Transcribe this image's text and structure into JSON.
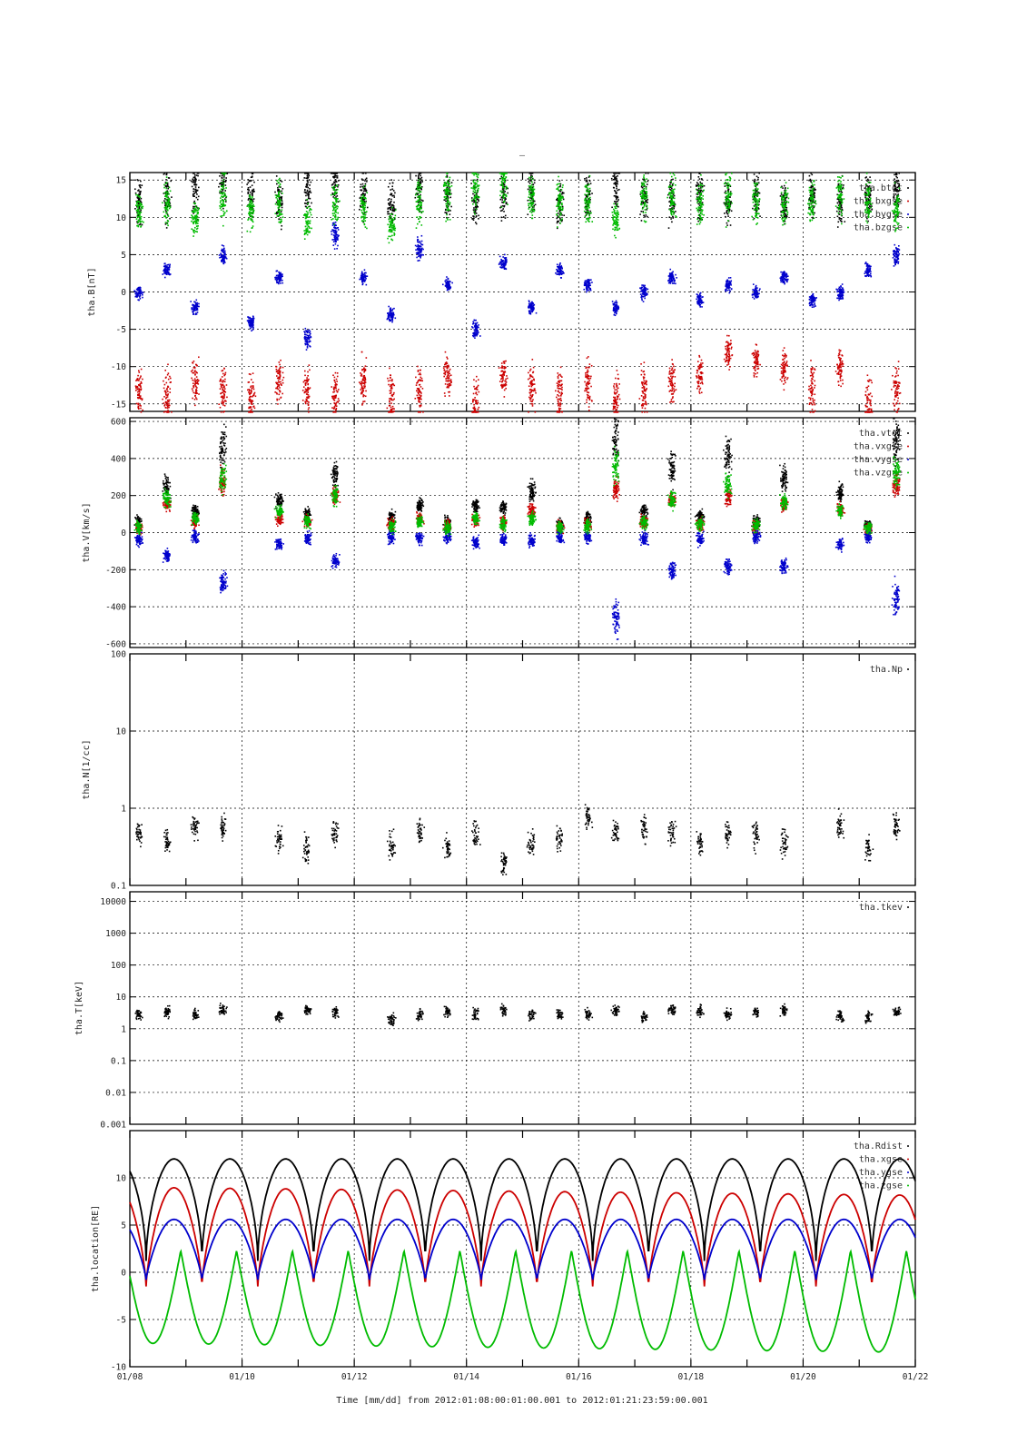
{
  "figure": {
    "title_mark": "–",
    "xaxis_label": "Time [mm/dd]  from 2012:01:08:00:01:00.001  to  2012:01:21:23:59:00.001",
    "xticks": [
      "01/08",
      "01/10",
      "01/12",
      "01/14",
      "01/16",
      "01/18",
      "01/20",
      "01/22"
    ]
  },
  "chart_data": [
    {
      "type": "scatter",
      "ylabel": "tha.B[nT]",
      "scale": "linear",
      "ylim": [
        -16,
        16
      ],
      "yticks": [
        -15,
        -10,
        -5,
        0,
        5,
        10,
        15
      ],
      "grid": true,
      "legend_position": "top-right",
      "series": [
        {
          "name": "tha.btot",
          "color": "#000000"
        },
        {
          "name": "tha.bxgse",
          "color": "#cc0000"
        },
        {
          "name": "tha.bygse",
          "color": "#0000cc"
        },
        {
          "name": "tha.bzgse",
          "color": "#00bb00"
        }
      ],
      "x": [
        "01/08",
        "01/08 12h",
        "01/09",
        "01/09 12h",
        "01/10",
        "01/10 12h",
        "01/11",
        "01/11 12h",
        "01/12",
        "01/12 12h",
        "01/13",
        "01/13 12h",
        "01/14",
        "01/14 12h",
        "01/15",
        "01/15 12h",
        "01/16",
        "01/16 12h",
        "01/17",
        "01/17 12h",
        "01/18",
        "01/18 12h",
        "01/19",
        "01/19 12h",
        "01/20",
        "01/20 12h",
        "01/21",
        "01/21 12h"
      ],
      "values": {
        "tha.bxgse": [
          -13,
          -14,
          -12,
          -13,
          -14,
          -12,
          -13,
          -14,
          -12,
          -14,
          -13,
          -11,
          -15,
          -11,
          -13,
          -14,
          -12,
          -14,
          -13,
          -12,
          -11,
          -8,
          -9,
          -10,
          -13,
          -10,
          -15,
          -13
        ],
        "tha.bzgse": [
          11,
          12,
          10,
          13,
          11,
          12,
          10,
          12,
          11,
          9,
          12,
          13,
          14,
          15,
          13,
          12,
          12,
          10,
          13,
          13,
          12,
          13,
          12,
          12,
          12,
          13,
          12,
          11
        ],
        "tha.bygse": [
          0,
          3,
          -2,
          5,
          -4,
          2,
          -6,
          8,
          2,
          -3,
          6,
          1,
          -5,
          4,
          -2,
          3,
          1,
          -2,
          0,
          2,
          -1,
          1,
          0,
          2,
          -1,
          0,
          3,
          5
        ],
        "tha.btot": [
          12,
          13,
          14,
          15,
          13,
          12,
          14,
          15,
          13,
          12,
          14,
          13,
          12,
          13,
          14,
          12,
          13,
          14,
          13,
          12,
          13,
          12,
          13,
          12,
          13,
          12,
          13,
          14
        ]
      }
    },
    {
      "type": "scatter",
      "ylabel": "tha.V[km/s]",
      "scale": "linear",
      "ylim": [
        -620,
        620
      ],
      "yticks": [
        -600,
        -400,
        -200,
        0,
        200,
        400,
        600
      ],
      "grid": true,
      "legend_position": "top-right",
      "series": [
        {
          "name": "tha.vtot",
          "color": "#000000"
        },
        {
          "name": "tha.vxgse",
          "color": "#cc0000"
        },
        {
          "name": "tha.vygse",
          "color": "#0000cc"
        },
        {
          "name": "tha.vzgse",
          "color": "#00bb00"
        }
      ],
      "x": [
        "01/08",
        "01/08 12h",
        "01/09",
        "01/09 12h",
        "01/10 12h",
        "01/11",
        "01/11 12h",
        "01/12 12h",
        "01/13",
        "01/13 12h",
        "01/14",
        "01/14 12h",
        "01/15",
        "01/15 12h",
        "01/16",
        "01/16 12h",
        "01/17",
        "01/17 12h",
        "01/18",
        "01/18 12h",
        "01/19",
        "01/19 12h",
        "01/20 12h",
        "01/21",
        "01/21 12h"
      ],
      "values": {
        "tha.vtot": [
          60,
          250,
          120,
          470,
          180,
          100,
          300,
          90,
          150,
          60,
          150,
          140,
          230,
          50,
          80,
          500,
          120,
          350,
          90,
          420,
          60,
          300,
          220,
          40,
          500
        ],
        "tha.vxgse": [
          30,
          160,
          60,
          280,
          80,
          60,
          200,
          50,
          80,
          40,
          70,
          60,
          120,
          30,
          50,
          240,
          60,
          180,
          50,
          200,
          30,
          160,
          130,
          20,
          260
        ],
        "tha.vygse": [
          -30,
          -120,
          -20,
          -250,
          -60,
          -30,
          -150,
          -20,
          -30,
          -20,
          -50,
          -30,
          -40,
          -20,
          -20,
          -450,
          -30,
          -200,
          -30,
          -180,
          -20,
          -180,
          -60,
          -20,
          -350
        ],
        "tha.vzgse": [
          30,
          190,
          80,
          300,
          120,
          60,
          200,
          40,
          60,
          30,
          80,
          50,
          80,
          30,
          40,
          360,
          60,
          180,
          50,
          260,
          40,
          170,
          120,
          30,
          330
        ]
      }
    },
    {
      "type": "scatter",
      "ylabel": "tha.N[1/cc]",
      "scale": "log",
      "ylim": [
        0.1,
        100
      ],
      "yticks": [
        "0.1",
        "1",
        "10",
        "100"
      ],
      "grid": true,
      "legend_position": "top-right",
      "series": [
        {
          "name": "tha.Np",
          "color": "#000000"
        }
      ],
      "x": [
        "01/08",
        "01/08 12h",
        "01/09",
        "01/09 12h",
        "01/10 12h",
        "01/11",
        "01/11 12h",
        "01/12 12h",
        "01/13",
        "01/13 12h",
        "01/14",
        "01/14 12h",
        "01/15",
        "01/15 12h",
        "01/16",
        "01/16 12h",
        "01/17",
        "01/17 12h",
        "01/18",
        "01/18 12h",
        "01/19",
        "01/19 12h",
        "01/20 12h",
        "01/21",
        "01/21 12h"
      ],
      "values": {
        "tha.Np": [
          0.5,
          0.4,
          0.6,
          0.55,
          0.4,
          0.3,
          0.5,
          0.35,
          0.5,
          0.3,
          0.45,
          0.2,
          0.35,
          0.4,
          0.8,
          0.5,
          0.55,
          0.5,
          0.35,
          0.5,
          0.45,
          0.35,
          0.6,
          0.3,
          0.6
        ]
      }
    },
    {
      "type": "scatter",
      "ylabel": "tha.T[keV]",
      "scale": "log",
      "ylim": [
        0.001,
        20000
      ],
      "yticks": [
        "0.001",
        "0.01",
        "0.1",
        "1",
        "10",
        "100",
        "1000",
        "10000"
      ],
      "grid": true,
      "legend_position": "top-right",
      "series": [
        {
          "name": "tha.tkev",
          "color": "#000000"
        }
      ],
      "x": [
        "01/08",
        "01/08 12h",
        "01/09",
        "01/09 12h",
        "01/10 12h",
        "01/11",
        "01/11 12h",
        "01/12 12h",
        "01/13",
        "01/13 12h",
        "01/14",
        "01/14 12h",
        "01/15",
        "01/15 12h",
        "01/16",
        "01/16 12h",
        "01/17",
        "01/17 12h",
        "01/18",
        "01/18 12h",
        "01/19",
        "01/19 12h",
        "01/20 12h",
        "01/21",
        "01/21 12h"
      ],
      "values": {
        "tha.tkev": [
          3,
          3.5,
          3,
          4,
          2.5,
          4,
          3.5,
          2,
          3,
          3.5,
          3,
          4,
          3,
          3,
          3,
          4,
          2.5,
          4,
          4,
          3,
          3.5,
          4,
          2.5,
          2.5,
          4
        ]
      }
    },
    {
      "type": "line",
      "ylabel": "tha.location[RE]",
      "scale": "linear",
      "ylim": [
        -10,
        15
      ],
      "yticks": [
        -10,
        -5,
        0,
        5,
        10
      ],
      "grid": true,
      "legend_position": "top-right",
      "series": [
        {
          "name": "tha.Rdist",
          "color": "#000000"
        },
        {
          "name": "tha.xgse",
          "color": "#cc0000"
        },
        {
          "name": "tha.ygse",
          "color": "#0000cc"
        },
        {
          "name": "tha.zgse",
          "color": "#00bb00"
        }
      ],
      "orbit": {
        "period_days": 0.995,
        "perigee_day_offset": 0.29,
        "Rdist_range": [
          1.2,
          12
        ],
        "xgse_range": [
          -1.5,
          9
        ],
        "ygse_range": [
          -0.8,
          5.6
        ],
        "zgse_range": [
          2.3,
          -7.5
        ],
        "zgse_apogee_drift": -0.07,
        "xgse_apogee_drift": -0.06
      }
    }
  ]
}
